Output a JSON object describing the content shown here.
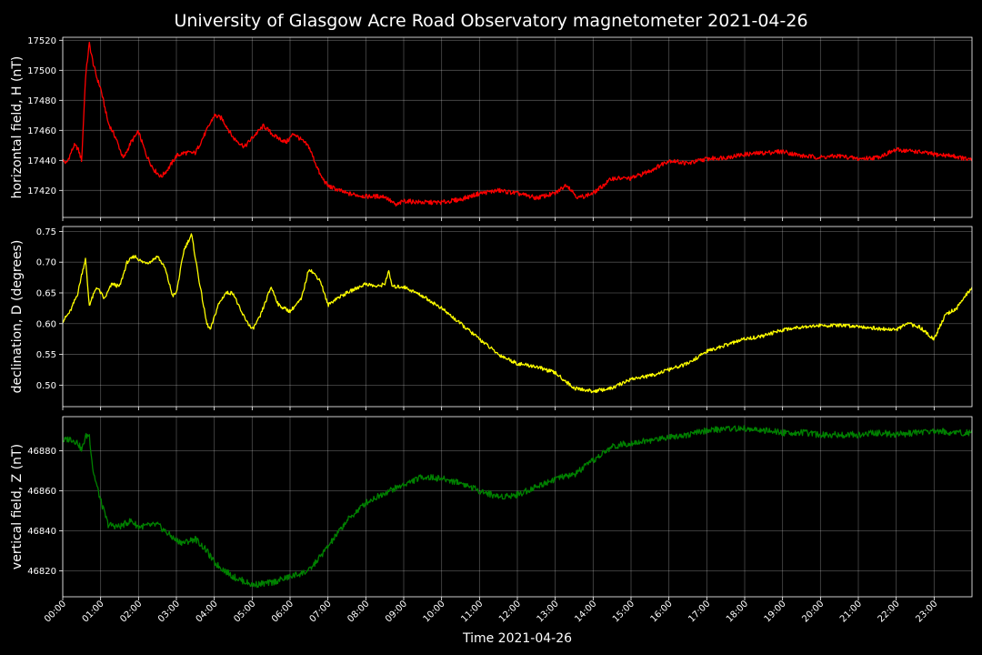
{
  "chart_data": {
    "type": "line",
    "title": "University of Glasgow Acre Road Observatory magnetometer 2021-04-26",
    "xlabel": "Time 2021-04-26",
    "x_ticks": [
      "00:00",
      "01:00",
      "02:00",
      "03:00",
      "04:00",
      "05:00",
      "06:00",
      "07:00",
      "08:00",
      "09:00",
      "10:00",
      "11:00",
      "12:00",
      "13:00",
      "14:00",
      "15:00",
      "16:00",
      "17:00",
      "18:00",
      "19:00",
      "20:00",
      "21:00",
      "22:00",
      "23:00"
    ],
    "xlim_hours": [
      0,
      24
    ],
    "grid": true,
    "panels": [
      {
        "ylabel": "horizontal field, H (nT)",
        "color": "#ff0000",
        "ylim": [
          17402,
          17522
        ],
        "y_ticks": [
          17420,
          17440,
          17460,
          17480,
          17500,
          17520
        ],
        "y_tick_labels": [
          "17420",
          "17440",
          "17460",
          "17480",
          "17500",
          "17520"
        ],
        "series": {
          "x": [
            0,
            0.1,
            0.3,
            0.4,
            0.5,
            0.6,
            0.7,
            0.8,
            0.9,
            1.0,
            1.2,
            1.4,
            1.6,
            1.8,
            2.0,
            2.2,
            2.4,
            2.6,
            2.8,
            3.0,
            3.2,
            3.5,
            3.8,
            4.0,
            4.2,
            4.5,
            4.8,
            5.0,
            5.3,
            5.6,
            5.9,
            6.1,
            6.5,
            6.8,
            7.0,
            7.5,
            8.0,
            8.5,
            8.8,
            9.0,
            9.5,
            10.0,
            10.5,
            11.0,
            11.5,
            12.0,
            12.5,
            13.0,
            13.3,
            13.6,
            14.0,
            14.5,
            15.0,
            15.5,
            16.0,
            16.5,
            17.0,
            17.5,
            18.0,
            18.5,
            19.0,
            19.5,
            20.0,
            20.5,
            21.0,
            21.5,
            22.0,
            22.5,
            23.0,
            23.5,
            24.0
          ],
          "y": [
            17440,
            17438,
            17450,
            17448,
            17440,
            17495,
            17518,
            17505,
            17495,
            17488,
            17465,
            17455,
            17441,
            17452,
            17459,
            17444,
            17434,
            17429,
            17435,
            17443,
            17445,
            17445,
            17460,
            17470,
            17468,
            17455,
            17449,
            17455,
            17463,
            17456,
            17452,
            17458,
            17449,
            17430,
            17423,
            17418,
            17416,
            17416,
            17410,
            17413,
            17412,
            17412,
            17414,
            17418,
            17420,
            17418,
            17415,
            17418,
            17424,
            17415,
            17418,
            17428,
            17428,
            17433,
            17440,
            17438,
            17441,
            17442,
            17444,
            17445,
            17446,
            17443,
            17442,
            17443,
            17441,
            17442,
            17447,
            17446,
            17444,
            17443,
            17440
          ]
        }
      },
      {
        "ylabel": "declination, D (degrees)",
        "color": "#ffff00",
        "ylim": [
          0.465,
          0.758
        ],
        "y_ticks": [
          0.5,
          0.55,
          0.6,
          0.65,
          0.7,
          0.75
        ],
        "y_tick_labels": [
          "0.50",
          "0.55",
          "0.60",
          "0.65",
          "0.70",
          "0.75"
        ],
        "series": {
          "x": [
            0,
            0.2,
            0.4,
            0.5,
            0.6,
            0.7,
            0.9,
            1.0,
            1.1,
            1.3,
            1.5,
            1.7,
            1.9,
            2.1,
            2.3,
            2.5,
            2.7,
            2.9,
            3.0,
            3.2,
            3.4,
            3.6,
            3.8,
            3.9,
            4.1,
            4.3,
            4.5,
            4.7,
            5.0,
            5.2,
            5.5,
            5.7,
            6.0,
            6.3,
            6.5,
            6.8,
            7.0,
            7.2,
            7.5,
            8.0,
            8.3,
            8.5,
            8.6,
            8.7,
            9.0,
            9.5,
            10.0,
            10.5,
            11.0,
            11.5,
            12.0,
            12.5,
            13.0,
            13.5,
            14.0,
            14.5,
            15.0,
            15.5,
            16.0,
            16.5,
            17.0,
            17.5,
            18.0,
            18.5,
            19.0,
            19.5,
            20.0,
            20.5,
            21.0,
            21.5,
            22.0,
            22.3,
            22.6,
            23.0,
            23.3,
            23.6,
            24.0
          ],
          "y": [
            0.604,
            0.62,
            0.65,
            0.68,
            0.705,
            0.63,
            0.66,
            0.65,
            0.64,
            0.665,
            0.66,
            0.7,
            0.71,
            0.7,
            0.7,
            0.71,
            0.69,
            0.645,
            0.65,
            0.72,
            0.745,
            0.67,
            0.6,
            0.59,
            0.63,
            0.65,
            0.65,
            0.62,
            0.59,
            0.61,
            0.66,
            0.63,
            0.62,
            0.64,
            0.69,
            0.67,
            0.63,
            0.64,
            0.65,
            0.665,
            0.66,
            0.665,
            0.685,
            0.66,
            0.66,
            0.645,
            0.625,
            0.6,
            0.575,
            0.55,
            0.535,
            0.53,
            0.52,
            0.495,
            0.49,
            0.495,
            0.51,
            0.515,
            0.525,
            0.535,
            0.555,
            0.565,
            0.575,
            0.58,
            0.59,
            0.595,
            0.597,
            0.597,
            0.596,
            0.592,
            0.59,
            0.6,
            0.595,
            0.575,
            0.615,
            0.625,
            0.66
          ]
        }
      },
      {
        "ylabel": "vertical field, Z (nT)",
        "color": "#008000",
        "ylim": [
          46807,
          46897
        ],
        "y_ticks": [
          46820,
          46840,
          46860,
          46880
        ],
        "y_tick_labels": [
          "46820",
          "46840",
          "46860",
          "46880"
        ],
        "series": {
          "x": [
            0,
            0.2,
            0.4,
            0.5,
            0.6,
            0.7,
            0.8,
            1.0,
            1.2,
            1.5,
            1.8,
            2.0,
            2.5,
            3.0,
            3.2,
            3.5,
            3.8,
            4.0,
            4.5,
            5.0,
            5.5,
            6.0,
            6.5,
            7.0,
            7.5,
            8.0,
            8.5,
            9.0,
            9.5,
            10.0,
            10.5,
            11.0,
            11.5,
            12.0,
            12.5,
            13.0,
            13.5,
            14.0,
            14.5,
            15.0,
            15.5,
            16.0,
            16.5,
            17.0,
            17.5,
            18.0,
            18.5,
            19.0,
            19.5,
            20.0,
            20.5,
            21.0,
            21.5,
            22.0,
            22.5,
            23.0,
            23.5,
            24.0
          ],
          "y": [
            46885,
            46886,
            46884,
            46880,
            46887,
            46888,
            46870,
            46855,
            46843,
            46842,
            46845,
            46842,
            46843,
            46835,
            46834,
            46836,
            46830,
            46824,
            46817,
            46813,
            46814,
            46817,
            46820,
            46832,
            46845,
            46854,
            46859,
            46863,
            46867,
            46866,
            46864,
            46860,
            46857,
            46858,
            46862,
            46866,
            46868,
            46875,
            46882,
            46884,
            46885,
            46887,
            46888,
            46890,
            46891,
            46891,
            46890,
            46889,
            46889,
            46888,
            46888,
            46888,
            46889,
            46888,
            46889,
            46890,
            46889,
            46889
          ]
        }
      }
    ]
  }
}
